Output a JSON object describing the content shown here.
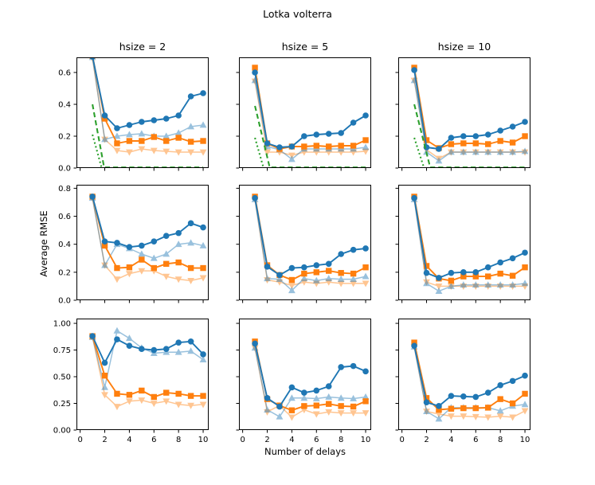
{
  "title": "Lotka volterra",
  "xlabel": "Number of delays",
  "ylabel": "Average RMSE",
  "colors": {
    "blue": "#1f77b4",
    "orange": "#ff7f0e",
    "green": "#2ca02c",
    "text": "#000000",
    "background": "#ffffff"
  },
  "chart_data": {
    "type": "line",
    "title": "Lotka volterra",
    "xlabel": "Number of delays",
    "ylabel": "Average RMSE",
    "grid": false,
    "legend": null,
    "x": [
      1,
      2,
      3,
      4,
      5,
      6,
      7,
      8,
      9,
      10
    ],
    "xlim": [
      -0.3,
      10.45
    ],
    "xticks": [
      0,
      2,
      4,
      6,
      8,
      10
    ],
    "xtick_labels": [
      "0",
      "2",
      "4",
      "6",
      "8",
      "10"
    ],
    "cols": [
      {
        "title": "hsize = 2"
      },
      {
        "title": "hsize = 5"
      },
      {
        "title": "hsize = 10"
      }
    ],
    "rows": [
      {
        "ylim": [
          0,
          0.695
        ],
        "yticks": [
          0,
          0.2,
          0.4,
          0.6
        ],
        "ytick_labels": [
          "0.0",
          "0.2",
          "0.4",
          "0.6"
        ]
      },
      {
        "ylim": [
          0,
          0.825
        ],
        "yticks": [
          0,
          0.2,
          0.4,
          0.6,
          0.8
        ],
        "ytick_labels": [
          "0.0",
          "0.2",
          "0.4",
          "0.6",
          "0.8"
        ]
      },
      {
        "ylim": [
          0,
          1.045
        ],
        "yticks": [
          0,
          0.25,
          0.5,
          0.75,
          1.0
        ],
        "ytick_labels": [
          "0.00",
          "0.25",
          "0.50",
          "0.75",
          "1.00"
        ]
      }
    ],
    "series_styles": [
      {
        "key": "light_orange",
        "name": "series-lightorange-triangle-down",
        "color": "#ff7f0e",
        "marker": "triangle-down",
        "opacity": 0.45,
        "lw": 1.5
      },
      {
        "key": "light_blue",
        "name": "series-lightblue-triangle-up",
        "color": "#1f77b4",
        "marker": "triangle-up",
        "opacity": 0.45,
        "lw": 1.5
      },
      {
        "key": "orange",
        "name": "series-orange-square",
        "color": "#ff7f0e",
        "marker": "square",
        "opacity": 1,
        "lw": 1.9
      },
      {
        "key": "blue",
        "name": "series-blue-circle",
        "color": "#1f77b4",
        "marker": "circle",
        "opacity": 1,
        "lw": 1.9
      },
      {
        "key": "green_dashed",
        "name": "series-green-dashed",
        "color": "#2ca02c",
        "marker": null,
        "opacity": 1,
        "lw": 2.1,
        "dash": "6.3 3.9"
      },
      {
        "key": "green_dotted",
        "name": "series-green-dotted",
        "color": "#2ca02c",
        "marker": null,
        "opacity": 1,
        "lw": 2.1,
        "dash": "2 3"
      }
    ],
    "subplots": [
      {
        "row": 0,
        "col": 0,
        "series": {
          "blue": [
            0.7,
            0.33,
            0.25,
            0.27,
            0.29,
            0.3,
            0.31,
            0.33,
            0.45,
            0.47
          ],
          "orange": [
            0.705,
            0.31,
            0.155,
            0.17,
            0.17,
            0.195,
            0.17,
            0.19,
            0.165,
            0.17
          ],
          "light_blue": [
            0.695,
            0.18,
            0.2,
            0.21,
            0.215,
            0.2,
            0.2,
            0.22,
            0.26,
            0.27
          ],
          "light_orange": [
            0.69,
            0.18,
            0.11,
            0.1,
            0.12,
            0.11,
            0.105,
            0.1,
            0.1,
            0.1
          ],
          "green_dashed": {
            "x": [
              1,
              1.95,
              10
            ],
            "y": [
              0.4,
              0.004,
              0.004
            ]
          },
          "green_dotted": {
            "x": [
              1,
              1.75
            ],
            "y": [
              0.21,
              0.0
            ]
          }
        }
      },
      {
        "row": 0,
        "col": 1,
        "series": {
          "blue": [
            0.6,
            0.155,
            0.13,
            0.135,
            0.2,
            0.21,
            0.215,
            0.22,
            0.285,
            0.33
          ],
          "orange": [
            0.63,
            0.155,
            0.12,
            0.135,
            0.135,
            0.14,
            0.135,
            0.14,
            0.14,
            0.175
          ],
          "light_blue": [
            0.55,
            0.135,
            0.115,
            0.055,
            0.12,
            0.12,
            0.12,
            0.12,
            0.12,
            0.13
          ],
          "light_orange": [
            0.545,
            0.1,
            0.1,
            0.08,
            0.1,
            0.1,
            0.1,
            0.1,
            0.1,
            0.105
          ],
          "green_dashed": {
            "x": [
              1,
              2.2,
              10
            ],
            "y": [
              0.39,
              0.004,
              0.004
            ]
          },
          "green_dotted": {
            "x": [
              1,
              1.7
            ],
            "y": [
              0.19,
              0.0
            ]
          }
        }
      },
      {
        "row": 0,
        "col": 2,
        "series": {
          "blue": [
            0.615,
            0.13,
            0.12,
            0.19,
            0.2,
            0.2,
            0.21,
            0.235,
            0.26,
            0.29
          ],
          "orange": [
            0.63,
            0.175,
            0.125,
            0.15,
            0.155,
            0.155,
            0.15,
            0.17,
            0.16,
            0.2
          ],
          "light_blue": [
            0.55,
            0.1,
            0.045,
            0.1,
            0.1,
            0.1,
            0.1,
            0.1,
            0.1,
            0.105
          ],
          "light_orange": [
            0.55,
            0.115,
            0.06,
            0.1,
            0.1,
            0.1,
            0.1,
            0.1,
            0.1,
            0.1
          ],
          "green_dashed": {
            "x": [
              1,
              2.3,
              10
            ],
            "y": [
              0.4,
              0.004,
              0.004
            ]
          },
          "green_dotted": {
            "x": [
              1,
              1.8
            ],
            "y": [
              0.19,
              0.0
            ]
          }
        }
      },
      {
        "row": 1,
        "col": 0,
        "series": {
          "blue": [
            0.74,
            0.42,
            0.41,
            0.38,
            0.39,
            0.42,
            0.46,
            0.48,
            0.55,
            0.52
          ],
          "orange": [
            0.74,
            0.39,
            0.23,
            0.235,
            0.29,
            0.23,
            0.26,
            0.27,
            0.23,
            0.23
          ],
          "light_blue": [
            0.73,
            0.25,
            0.4,
            0.37,
            0.33,
            0.3,
            0.33,
            0.4,
            0.41,
            0.39
          ],
          "light_orange": [
            0.73,
            0.25,
            0.15,
            0.19,
            0.21,
            0.21,
            0.17,
            0.15,
            0.14,
            0.16
          ]
        }
      },
      {
        "row": 1,
        "col": 1,
        "series": {
          "blue": [
            0.73,
            0.24,
            0.18,
            0.23,
            0.235,
            0.25,
            0.26,
            0.33,
            0.36,
            0.37
          ],
          "orange": [
            0.74,
            0.25,
            0.18,
            0.145,
            0.19,
            0.2,
            0.21,
            0.195,
            0.19,
            0.235
          ],
          "light_blue": [
            0.72,
            0.155,
            0.15,
            0.07,
            0.155,
            0.14,
            0.155,
            0.15,
            0.15,
            0.17
          ],
          "light_orange": [
            0.72,
            0.145,
            0.13,
            0.105,
            0.13,
            0.12,
            0.13,
            0.12,
            0.12,
            0.12
          ]
        }
      },
      {
        "row": 1,
        "col": 2,
        "series": {
          "blue": [
            0.73,
            0.195,
            0.16,
            0.195,
            0.2,
            0.2,
            0.235,
            0.27,
            0.3,
            0.34
          ],
          "orange": [
            0.74,
            0.245,
            0.155,
            0.14,
            0.17,
            0.17,
            0.17,
            0.19,
            0.175,
            0.235
          ],
          "light_blue": [
            0.72,
            0.12,
            0.065,
            0.1,
            0.11,
            0.11,
            0.11,
            0.11,
            0.11,
            0.12
          ],
          "light_orange": [
            0.72,
            0.13,
            0.1,
            0.1,
            0.1,
            0.1,
            0.1,
            0.1,
            0.1,
            0.1
          ]
        }
      },
      {
        "row": 2,
        "col": 0,
        "series": {
          "blue": [
            0.88,
            0.63,
            0.85,
            0.79,
            0.76,
            0.75,
            0.76,
            0.82,
            0.83,
            0.71
          ],
          "orange": [
            0.88,
            0.51,
            0.34,
            0.33,
            0.37,
            0.31,
            0.35,
            0.34,
            0.32,
            0.32
          ],
          "light_blue": [
            0.87,
            0.4,
            0.93,
            0.86,
            0.77,
            0.72,
            0.73,
            0.73,
            0.74,
            0.66
          ],
          "light_orange": [
            0.87,
            0.33,
            0.22,
            0.27,
            0.28,
            0.25,
            0.27,
            0.24,
            0.23,
            0.24
          ]
        }
      },
      {
        "row": 2,
        "col": 1,
        "series": {
          "blue": [
            0.81,
            0.3,
            0.22,
            0.4,
            0.35,
            0.37,
            0.41,
            0.59,
            0.6,
            0.55
          ],
          "orange": [
            0.83,
            0.29,
            0.23,
            0.185,
            0.225,
            0.23,
            0.245,
            0.225,
            0.22,
            0.27
          ],
          "light_blue": [
            0.77,
            0.19,
            0.125,
            0.3,
            0.3,
            0.295,
            0.31,
            0.3,
            0.295,
            0.31
          ],
          "light_orange": [
            0.77,
            0.17,
            0.23,
            0.12,
            0.19,
            0.15,
            0.17,
            0.16,
            0.16,
            0.16
          ]
        }
      },
      {
        "row": 2,
        "col": 2,
        "series": {
          "blue": [
            0.79,
            0.26,
            0.225,
            0.32,
            0.315,
            0.31,
            0.35,
            0.42,
            0.46,
            0.51
          ],
          "orange": [
            0.82,
            0.3,
            0.19,
            0.2,
            0.205,
            0.205,
            0.21,
            0.29,
            0.25,
            0.34
          ],
          "light_blue": [
            0.78,
            0.175,
            0.105,
            0.21,
            0.21,
            0.21,
            0.21,
            0.18,
            0.225,
            0.24
          ],
          "light_orange": [
            0.78,
            0.175,
            0.15,
            0.13,
            0.13,
            0.125,
            0.12,
            0.13,
            0.12,
            0.18
          ]
        }
      }
    ]
  }
}
